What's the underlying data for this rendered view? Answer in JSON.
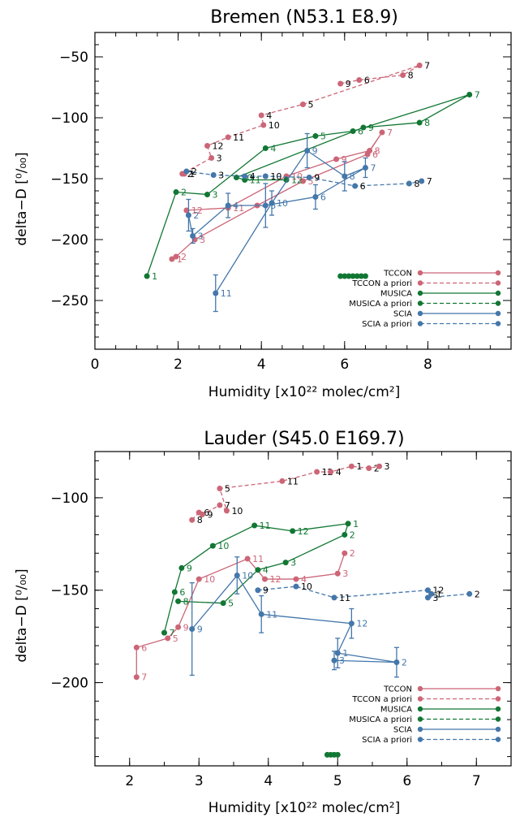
{
  "colors": {
    "TCCON": "#cc6677",
    "MUSICA": "#117733",
    "SCIA": "#4477aa",
    "label_black": "#000000"
  },
  "legend": [
    "TCCON",
    "TCCON a priori",
    "MUSICA",
    "MUSICA a priori",
    "SCIA",
    "SCIA a priori"
  ],
  "chart_data": [
    {
      "type": "line",
      "title": "Bremen (N53.1 E8.9)",
      "xlabel": "Humidity [x10²² molec/cm²]",
      "ylabel": "delta−D [⁰/₀₀]",
      "xlim": [
        0,
        10
      ],
      "ylim": [
        -290,
        -30
      ],
      "xticks": [
        0,
        2,
        4,
        6,
        8
      ],
      "yticks": [
        -250,
        -200,
        -150,
        -100,
        -50
      ],
      "series": [
        {
          "name": "TCCON",
          "color": "#cc6677",
          "dashed": false,
          "points": [
            {
              "x": 1.85,
              "y": -216,
              "m": "1"
            },
            {
              "x": 1.95,
              "y": -214,
              "m": "2"
            },
            {
              "x": 2.4,
              "y": -200,
              "m": "3"
            },
            {
              "x": 3.9,
              "y": -172,
              "m": "4"
            },
            {
              "x": 5.0,
              "y": -152,
              "m": "5"
            },
            {
              "x": 6.55,
              "y": -130,
              "m": "6"
            },
            {
              "x": 6.9,
              "y": -112,
              "m": "7"
            },
            {
              "x": 6.6,
              "y": -127,
              "m": "8"
            },
            {
              "x": 5.8,
              "y": -134,
              "m": "9"
            },
            {
              "x": 4.6,
              "y": -148,
              "m": "10"
            },
            {
              "x": 3.2,
              "y": -174,
              "m": "11"
            },
            {
              "x": 2.2,
              "y": -176,
              "m": "12"
            }
          ]
        },
        {
          "name": "TCCON a priori",
          "color": "#cc6677",
          "dashed": true,
          "points": [
            {
              "x": 5.9,
              "y": -72,
              "m": "9"
            },
            {
              "x": 6.35,
              "y": -69,
              "m": "6"
            },
            {
              "x": 7.4,
              "y": -65,
              "m": "8"
            },
            {
              "x": 7.8,
              "y": -57,
              "m": "7"
            },
            {
              "x": 5.0,
              "y": -89,
              "m": "5"
            },
            {
              "x": 4.0,
              "y": -98,
              "m": "4"
            },
            {
              "x": 4.05,
              "y": -106,
              "m": "10"
            },
            {
              "x": 3.2,
              "y": -116,
              "m": "11"
            },
            {
              "x": 2.7,
              "y": -123,
              "m": "12"
            },
            {
              "x": 2.8,
              "y": -133,
              "m": "3"
            },
            {
              "x": 2.1,
              "y": -146,
              "m": "2"
            },
            {
              "x": 2.15,
              "y": -146,
              "m": "1"
            }
          ]
        },
        {
          "name": "MUSICA",
          "color": "#117733",
          "dashed": false,
          "points": [
            {
              "x": 1.25,
              "y": -230,
              "m": "1"
            },
            {
              "x": 1.95,
              "y": -161,
              "m": "2"
            },
            {
              "x": 2.7,
              "y": -163,
              "m": "3"
            },
            {
              "x": 4.1,
              "y": -125,
              "m": "4"
            },
            {
              "x": 5.3,
              "y": -115,
              "m": "5"
            },
            {
              "x": 6.2,
              "y": -111,
              "m": "6"
            },
            {
              "x": 9.0,
              "y": -81,
              "m": "7"
            },
            {
              "x": 7.8,
              "y": -104,
              "m": "8"
            },
            {
              "x": 6.45,
              "y": -108,
              "m": "9"
            },
            {
              "x": 3.4,
              "y": -149,
              "m": "10"
            },
            {
              "x": 3.6,
              "y": -151,
              "m": "11"
            },
            {
              "x": 4.6,
              "y": -151,
              "m": "12"
            }
          ]
        },
        {
          "name": "MUSICA a priori",
          "color": "#117733",
          "dashed": true,
          "points": [
            {
              "x": 5.9,
              "y": -230
            },
            {
              "x": 6.0,
              "y": -230
            },
            {
              "x": 6.1,
              "y": -230
            },
            {
              "x": 6.2,
              "y": -230
            },
            {
              "x": 6.3,
              "y": -230
            },
            {
              "x": 6.4,
              "y": -230
            },
            {
              "x": 6.5,
              "y": -230
            }
          ]
        },
        {
          "name": "SCIA",
          "color": "#4477aa",
          "dashed": false,
          "points": [
            {
              "x": 2.25,
              "y": -180,
              "m": "2",
              "err": 13
            },
            {
              "x": 2.35,
              "y": -197,
              "m": "3",
              "err": 6
            },
            {
              "x": 3.2,
              "y": -172,
              "m": "4",
              "err": 10
            },
            {
              "x": 4.1,
              "y": -172,
              "m": "5",
              "err": 18
            },
            {
              "x": 5.3,
              "y": -165,
              "m": "6",
              "err": 10
            },
            {
              "x": 6.5,
              "y": -141,
              "m": "7",
              "err": 8
            },
            {
              "x": 6.0,
              "y": -148,
              "m": "8",
              "err": 12
            },
            {
              "x": 5.1,
              "y": -127,
              "m": "9",
              "err": 14
            },
            {
              "x": 4.25,
              "y": -170,
              "m": "10",
              "err": 10
            },
            {
              "x": 2.9,
              "y": -244,
              "m": "11",
              "err": 15
            }
          ]
        },
        {
          "name": "SCIA a priori",
          "color": "#4477aa",
          "dashed": true,
          "points": [
            {
              "x": 2.2,
              "y": -144,
              "m": "2"
            },
            {
              "x": 2.85,
              "y": -147,
              "m": "3"
            },
            {
              "x": 3.6,
              "y": -148,
              "m": "4"
            },
            {
              "x": 4.1,
              "y": -148,
              "m": "10"
            },
            {
              "x": 5.15,
              "y": -149,
              "m": "9"
            },
            {
              "x": 6.25,
              "y": -156,
              "m": "6"
            },
            {
              "x": 7.55,
              "y": -154,
              "m": "8"
            },
            {
              "x": 7.85,
              "y": -152,
              "m": "7"
            }
          ]
        }
      ]
    },
    {
      "type": "line",
      "title": "Lauder (S45.0 E169.7)",
      "xlabel": "Humidity [x10²² molec/cm²]",
      "ylabel": "delta−D [⁰/₀₀]",
      "xlim": [
        1.5,
        7.5
      ],
      "ylim": [
        -245,
        -75
      ],
      "xticks": [
        2,
        3,
        4,
        5,
        6,
        7
      ],
      "yticks": [
        -200,
        -150,
        -100
      ],
      "series": [
        {
          "name": "TCCON",
          "color": "#cc6677",
          "dashed": false,
          "points": [
            {
              "x": 2.1,
              "y": -197,
              "m": "7"
            },
            {
              "x": 2.1,
              "y": -181,
              "m": "6"
            },
            {
              "x": 2.55,
              "y": -176,
              "m": "5"
            },
            {
              "x": 2.7,
              "y": -170,
              "m": "9"
            },
            {
              "x": 3.0,
              "y": -144,
              "m": "10"
            },
            {
              "x": 3.7,
              "y": -133,
              "m": "11"
            },
            {
              "x": 3.95,
              "y": -144,
              "m": "12"
            },
            {
              "x": 4.4,
              "y": -144,
              "m": "4"
            },
            {
              "x": 5.0,
              "y": -141,
              "m": "3"
            },
            {
              "x": 5.1,
              "y": -130,
              "m": "2"
            }
          ]
        },
        {
          "name": "TCCON a priori",
          "color": "#cc6677",
          "dashed": true,
          "points": [
            {
              "x": 2.9,
              "y": -112,
              "m": "8"
            },
            {
              "x": 3.0,
              "y": -108,
              "m": "6"
            },
            {
              "x": 3.05,
              "y": -109,
              "m": "9"
            },
            {
              "x": 3.3,
              "y": -104,
              "m": "7"
            },
            {
              "x": 3.4,
              "y": -107,
              "m": "10"
            },
            {
              "x": 3.3,
              "y": -95,
              "m": "5"
            },
            {
              "x": 4.2,
              "y": -91,
              "m": "11"
            },
            {
              "x": 4.7,
              "y": -86,
              "m": "12"
            },
            {
              "x": 4.9,
              "y": -86,
              "m": "4"
            },
            {
              "x": 5.2,
              "y": -83,
              "m": "1"
            },
            {
              "x": 5.45,
              "y": -84,
              "m": "2"
            },
            {
              "x": 5.6,
              "y": -83,
              "m": "3"
            }
          ]
        },
        {
          "name": "MUSICA",
          "color": "#117733",
          "dashed": false,
          "points": [
            {
              "x": 2.5,
              "y": -173,
              "m": "7"
            },
            {
              "x": 2.65,
              "y": -151,
              "m": "6"
            },
            {
              "x": 2.75,
              "y": -138,
              "m": "9"
            },
            {
              "x": 3.2,
              "y": -126,
              "m": "10"
            },
            {
              "x": 3.8,
              "y": -115,
              "m": "11"
            },
            {
              "x": 4.35,
              "y": -118,
              "m": "12"
            },
            {
              "x": 5.15,
              "y": -114,
              "m": "1"
            },
            {
              "x": 5.1,
              "y": -120,
              "m": "2"
            },
            {
              "x": 4.25,
              "y": -135,
              "m": "3"
            },
            {
              "x": 3.85,
              "y": -139,
              "m": "4"
            },
            {
              "x": 3.35,
              "y": -157,
              "m": "5"
            },
            {
              "x": 2.7,
              "y": -156,
              "m": "8"
            }
          ]
        },
        {
          "name": "MUSICA a priori",
          "color": "#117733",
          "dashed": true,
          "points": [
            {
              "x": 4.85,
              "y": -239
            },
            {
              "x": 4.9,
              "y": -239
            },
            {
              "x": 4.95,
              "y": -239
            },
            {
              "x": 5.0,
              "y": -239
            }
          ]
        },
        {
          "name": "SCIA",
          "color": "#4477aa",
          "dashed": false,
          "points": [
            {
              "x": 2.9,
              "y": -171,
              "m": "9",
              "err": 25
            },
            {
              "x": 3.55,
              "y": -142,
              "m": "10",
              "err": 10
            },
            {
              "x": 3.9,
              "y": -163,
              "m": "11",
              "err": 10
            },
            {
              "x": 5.2,
              "y": -168,
              "m": "12",
              "err": 8
            },
            {
              "x": 5.0,
              "y": -184,
              "m": "1",
              "err": 8
            },
            {
              "x": 5.85,
              "y": -189,
              "m": "2",
              "err": 8
            },
            {
              "x": 4.95,
              "y": -188,
              "m": "3",
              "err": 5
            }
          ]
        },
        {
          "name": "SCIA a priori",
          "color": "#4477aa",
          "dashed": true,
          "points": [
            {
              "x": 3.85,
              "y": -150,
              "m": "9"
            },
            {
              "x": 4.4,
              "y": -148,
              "m": "10"
            },
            {
              "x": 4.95,
              "y": -154,
              "m": "11"
            },
            {
              "x": 6.3,
              "y": -150,
              "m": "12"
            },
            {
              "x": 6.35,
              "y": -152,
              "m": "1"
            },
            {
              "x": 6.3,
              "y": -154,
              "m": "3"
            },
            {
              "x": 6.9,
              "y": -152,
              "m": "2"
            }
          ]
        }
      ]
    }
  ]
}
